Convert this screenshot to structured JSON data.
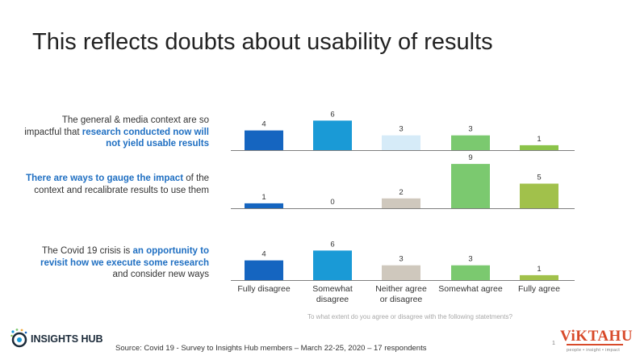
{
  "title": "This reflects doubts about usability of results",
  "statements": [
    {
      "parts": [
        {
          "text": "The general & media context are so impactful that ",
          "highlight": false
        },
        {
          "text": "research conducted now will not yield usable results",
          "highlight": true
        }
      ]
    },
    {
      "parts": [
        {
          "text": "There are ways to gauge the impact",
          "highlight": true
        },
        {
          "text": " of the context and recalibrate results to use them",
          "highlight": false
        }
      ]
    },
    {
      "parts": [
        {
          "text": "The Covid 19 crisis is ",
          "highlight": false
        },
        {
          "text": "an opportunity to revisit how we execute some research",
          "highlight": true
        },
        {
          "text": " and consider new ways",
          "highlight": false
        }
      ]
    }
  ],
  "colors": {
    "text_highlight": "#1f6fc2",
    "bars_row1": [
      "#1565c0",
      "#1a9ad6",
      "#d6ebf8",
      "#7bc96f",
      "#8bc34a"
    ],
    "bars_row2": [
      "#1565c0",
      "#1a9ad6",
      "#cfc8bd",
      "#7bc96f",
      "#a1c14b"
    ],
    "bars_row3": [
      "#1565c0",
      "#1a9ad6",
      "#cfc8bd",
      "#7bc96f",
      "#a1c14b"
    ],
    "axis": "#7f7f7f"
  },
  "chart_data": {
    "type": "bar",
    "categories": [
      "Fully disagree",
      "Somewhat disagree",
      "Neither agree or disagree",
      "Somewhat agree",
      "Fully agree"
    ],
    "series": [
      {
        "name": "The general & media context are so impactful that research conducted now will not yield usable results",
        "values": [
          4,
          6,
          3,
          3,
          1
        ]
      },
      {
        "name": "There are ways to gauge the impact of the context and recalibrate results to use them",
        "values": [
          1,
          0,
          2,
          9,
          5
        ]
      },
      {
        "name": "The Covid 19 crisis is an opportunity to revisit how we execute some research and consider new ways",
        "values": [
          4,
          6,
          3,
          3,
          1
        ]
      }
    ],
    "title": "This reflects doubts about usability of results",
    "xlabel": "To what extent do you agree or disagree with the following statetments?",
    "ylabel": ""
  },
  "footer": {
    "question": "To what extent do you agree or disagree with the following statetments?",
    "source": "Source: Covid 19 - Survey to Insights Hub members – March 22-25, 2020 – 17 respondents",
    "logo_left_text": "INSIGHTS HUB",
    "logo_right_text": "ViKTAHU",
    "logo_right_tagline": "people • insight • impact",
    "page_number": "1"
  }
}
